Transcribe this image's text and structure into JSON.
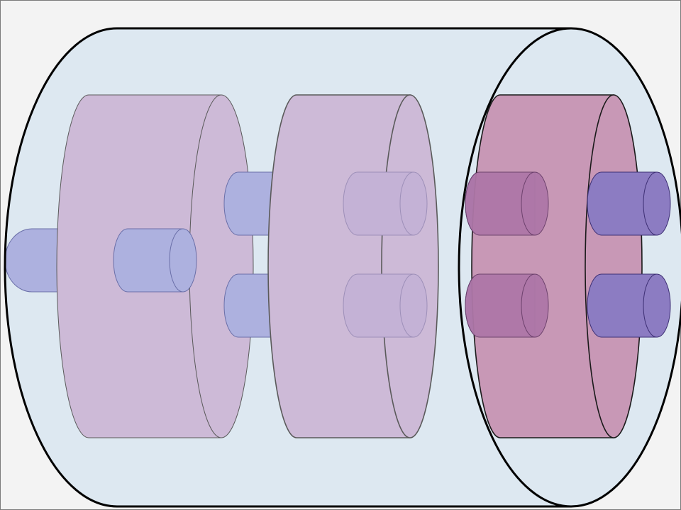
{
  "diagram": {
    "description_visible_text": "",
    "colors": {
      "background": "#f3f3f3",
      "outer_fill": "#dde8f1",
      "outer_stroke": "#000000",
      "disk_faded_fill": "#cdbad7",
      "disk_faded_stroke": "#5a5a5a",
      "disk_front_fill": "#c898b6",
      "disk_front_stroke": "#1a1a1a",
      "peg_light_fill": "#adb1df",
      "peg_light_stroke": "#6a6fa8",
      "peg_behind_fill": "#c4b2d6",
      "peg_dark_fill": "#8c7cc2",
      "peg_dark_stroke": "#3d2f74",
      "peg_overlap_fill": "#ae77a8"
    }
  }
}
